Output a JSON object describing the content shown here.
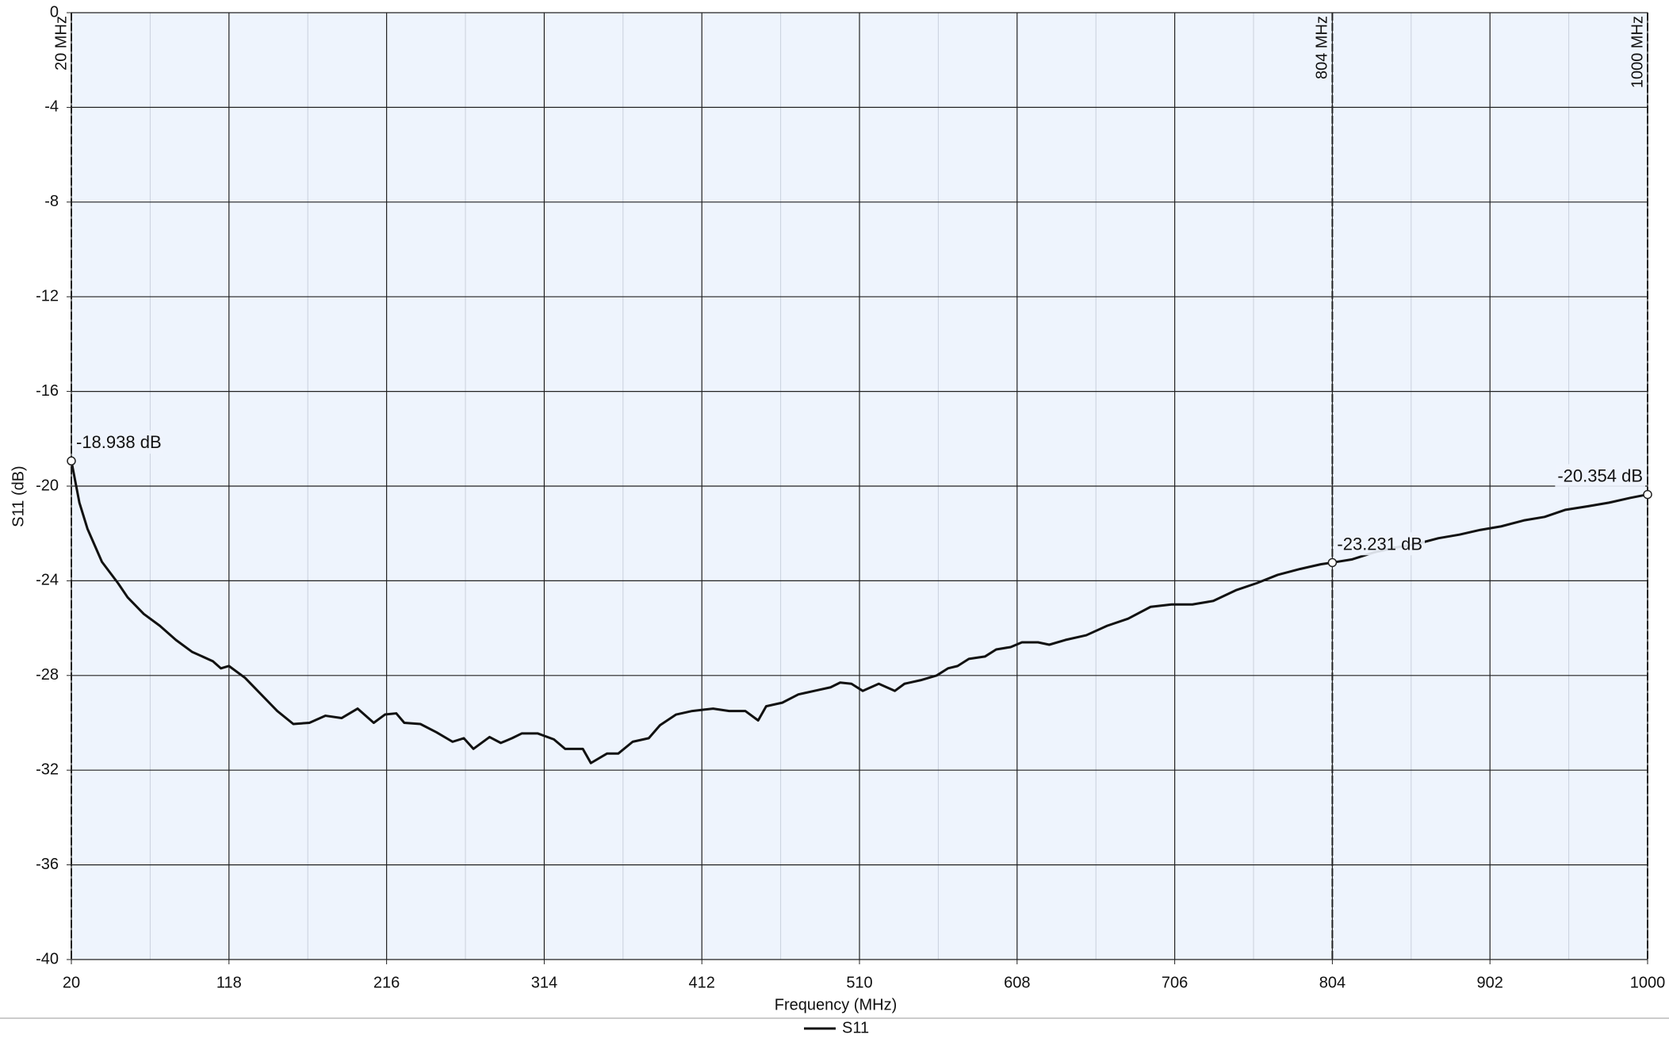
{
  "chart_data": {
    "type": "line",
    "x_label": "Frequency (MHz)",
    "y_label": "S11 (dB)",
    "x": [
      20,
      25,
      30,
      39,
      49,
      55,
      65,
      75,
      85,
      95,
      108,
      113,
      118,
      128,
      138,
      148,
      158,
      168,
      178,
      188,
      198,
      208,
      215,
      222,
      227,
      237,
      247,
      257,
      264,
      270,
      280,
      287,
      294,
      300,
      310,
      320,
      327,
      338,
      343,
      353,
      360,
      369,
      379,
      386,
      396,
      406,
      419,
      429,
      439,
      447,
      452,
      462,
      472,
      482,
      492,
      498,
      505,
      512,
      522,
      532,
      538,
      548,
      558,
      565,
      571,
      578,
      588,
      595,
      604,
      611,
      621,
      628,
      638,
      651,
      664,
      677,
      691,
      704,
      717,
      730,
      744,
      757,
      770,
      784,
      797,
      804,
      816,
      830,
      843,
      856,
      870,
      883,
      896,
      909,
      923,
      936,
      949,
      963,
      976,
      989,
      1000
    ],
    "series": [
      {
        "name": "S11",
        "color": "#111111",
        "values": [
          -18.938,
          -20.7,
          -21.8,
          -23.2,
          -24.1,
          -24.7,
          -25.4,
          -25.9,
          -26.5,
          -27.0,
          -27.4,
          -27.7,
          -27.6,
          -28.1,
          -28.8,
          -29.5,
          -30.05,
          -30.0,
          -29.7,
          -29.8,
          -29.4,
          -30.0,
          -29.65,
          -29.6,
          -30.0,
          -30.05,
          -30.4,
          -30.8,
          -30.65,
          -31.1,
          -30.6,
          -30.85,
          -30.65,
          -30.45,
          -30.45,
          -30.7,
          -31.1,
          -31.1,
          -31.7,
          -31.3,
          -31.3,
          -30.8,
          -30.65,
          -30.1,
          -29.65,
          -29.5,
          -29.4,
          -29.5,
          -29.5,
          -29.9,
          -29.3,
          -29.15,
          -28.8,
          -28.65,
          -28.5,
          -28.3,
          -28.35,
          -28.65,
          -28.35,
          -28.65,
          -28.35,
          -28.2,
          -28.0,
          -27.7,
          -27.6,
          -27.3,
          -27.2,
          -26.9,
          -26.8,
          -26.6,
          -26.6,
          -26.7,
          -26.5,
          -26.3,
          -25.9,
          -25.6,
          -25.1,
          -25.0,
          -25.0,
          -24.85,
          -24.4,
          -24.1,
          -23.75,
          -23.5,
          -23.3,
          -23.231,
          -23.1,
          -22.8,
          -22.6,
          -22.45,
          -22.2,
          -22.05,
          -21.85,
          -21.7,
          -21.45,
          -21.3,
          -21.0,
          -20.85,
          -20.7,
          -20.5,
          -20.354
        ]
      }
    ],
    "xlim": [
      20,
      1000
    ],
    "ylim": [
      -40,
      0
    ],
    "xticks": [
      20,
      118,
      216,
      314,
      412,
      510,
      608,
      706,
      804,
      902,
      1000
    ],
    "yticks": [
      0,
      -4,
      -8,
      -12,
      -16,
      -20,
      -24,
      -28,
      -32,
      -36,
      -40
    ],
    "grid": true,
    "legend": "bottom",
    "markers": [
      {
        "x": 20,
        "label": "20 MHz",
        "value": -18.938,
        "value_label": "-18.938 dB"
      },
      {
        "x": 804,
        "label": "804 MHz",
        "value": -23.231,
        "value_label": "-23.231 dB"
      },
      {
        "x": 1000,
        "label": "1000 MHz",
        "value": -20.354,
        "value_label": "-20.354 dB"
      }
    ]
  }
}
